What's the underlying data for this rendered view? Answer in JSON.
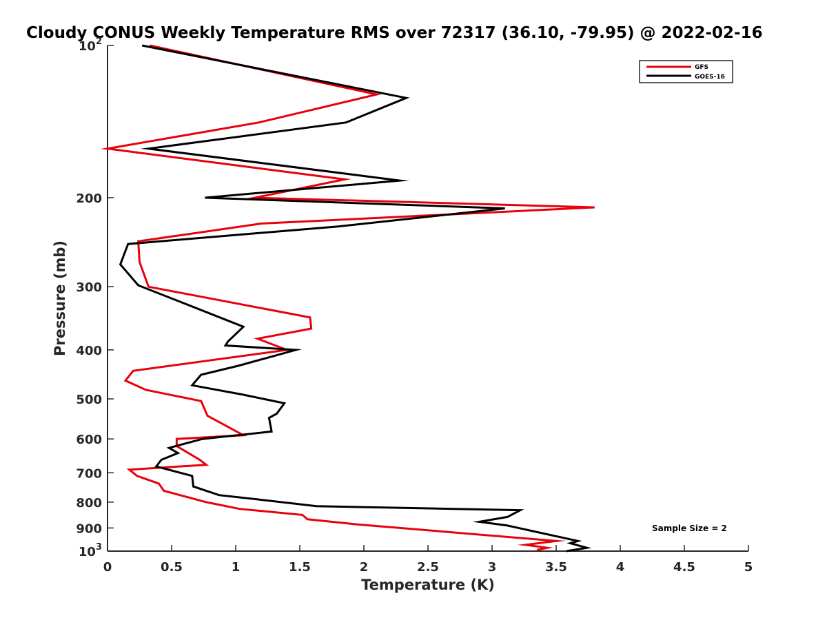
{
  "chart_data": {
    "type": "line",
    "title": "Cloudy CONUS Weekly Temperature RMS over 72317 (36.10, -79.95) @ 2022-02-16",
    "xlabel": "Temperature (K)",
    "ylabel": "Pressure (mb)",
    "xlim": [
      0,
      5
    ],
    "ylim": [
      100,
      1000
    ],
    "yscale": "log",
    "y_reversed": true,
    "grid": false,
    "legend_position": "top-right",
    "x_ticks": [
      "0",
      "0.5",
      "1",
      "1.5",
      "2",
      "2.5",
      "3",
      "3.5",
      "4",
      "4.5",
      "5"
    ],
    "y_ticks": [
      {
        "value": 100,
        "base": "10",
        "exp": "2"
      },
      {
        "value": 200,
        "label": "200"
      },
      {
        "value": 300,
        "label": "300"
      },
      {
        "value": 400,
        "label": "400"
      },
      {
        "value": 500,
        "label": "500"
      },
      {
        "value": 600,
        "label": "600"
      },
      {
        "value": 700,
        "label": "700"
      },
      {
        "value": 800,
        "label": "800"
      },
      {
        "value": 900,
        "label": "900"
      },
      {
        "value": 1000,
        "base": "10",
        "exp": "3"
      }
    ],
    "annotation": "Sample Size = 2",
    "series": [
      {
        "name": "GFS",
        "color": "#e8000b",
        "points": [
          [
            0.33,
            100
          ],
          [
            2.1,
            125
          ],
          [
            1.18,
            142
          ],
          [
            0,
            160
          ],
          [
            1.85,
            184
          ],
          [
            1.15,
            200
          ],
          [
            3.8,
            209
          ],
          [
            1.2,
            225
          ],
          [
            0.24,
            244
          ],
          [
            0.25,
            268
          ],
          [
            0.32,
            300
          ],
          [
            1.58,
            345
          ],
          [
            1.59,
            363
          ],
          [
            1.17,
            380
          ],
          [
            1.4,
            400
          ],
          [
            0.2,
            440
          ],
          [
            0.14,
            460
          ],
          [
            0.3,
            480
          ],
          [
            0.73,
            505
          ],
          [
            0.78,
            540
          ],
          [
            1.06,
            590
          ],
          [
            0.54,
            600
          ],
          [
            0.54,
            620
          ],
          [
            0.72,
            660
          ],
          [
            0.77,
            675
          ],
          [
            0.17,
            690
          ],
          [
            0.23,
            710
          ],
          [
            0.4,
            735
          ],
          [
            0.44,
            760
          ],
          [
            0.77,
            800
          ],
          [
            1.03,
            825
          ],
          [
            1.52,
            848
          ],
          [
            1.56,
            865
          ],
          [
            1.94,
            885
          ],
          [
            3.5,
            955
          ],
          [
            3.26,
            972
          ],
          [
            3.43,
            985
          ],
          [
            3.35,
            995
          ]
        ]
      },
      {
        "name": "GOES-16",
        "color": "#000000",
        "points": [
          [
            0.27,
            100
          ],
          [
            2.33,
            127
          ],
          [
            1.86,
            142
          ],
          [
            0.32,
            160
          ],
          [
            2.28,
            185
          ],
          [
            0.76,
            200
          ],
          [
            3.1,
            210
          ],
          [
            1.8,
            228
          ],
          [
            0.16,
            247
          ],
          [
            0.1,
            271
          ],
          [
            0.24,
            298
          ],
          [
            1.06,
            360
          ],
          [
            0.94,
            385
          ],
          [
            0.92,
            392
          ],
          [
            1.47,
            400
          ],
          [
            1.02,
            430
          ],
          [
            0.73,
            448
          ],
          [
            0.66,
            470
          ],
          [
            1.05,
            490
          ],
          [
            1.38,
            510
          ],
          [
            1.32,
            535
          ],
          [
            1.26,
            545
          ],
          [
            1.28,
            580
          ],
          [
            0.74,
            600
          ],
          [
            0.48,
            625
          ],
          [
            0.55,
            640
          ],
          [
            0.42,
            660
          ],
          [
            0.38,
            680
          ],
          [
            0.66,
            710
          ],
          [
            0.67,
            745
          ],
          [
            0.87,
            775
          ],
          [
            1.17,
            790
          ],
          [
            1.63,
            815
          ],
          [
            3.22,
            830
          ],
          [
            3.12,
            856
          ],
          [
            2.9,
            875
          ],
          [
            3.12,
            890
          ],
          [
            3.67,
            955
          ],
          [
            3.61,
            965
          ],
          [
            3.74,
            985
          ],
          [
            3.58,
            1000
          ]
        ]
      }
    ]
  }
}
